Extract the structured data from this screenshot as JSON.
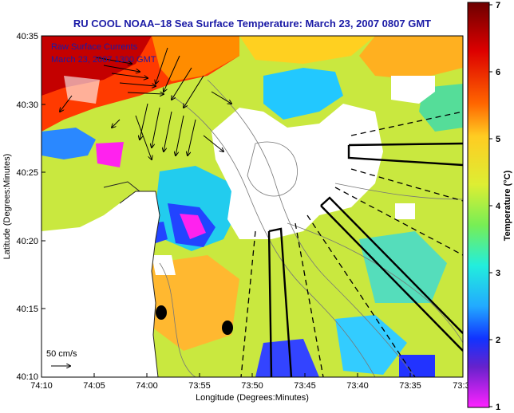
{
  "title": "RU COOL  NOAA–18  Sea Surface Temperature:  March 23, 2007 0807 GMT",
  "overlay": {
    "line1": "Raw Surface Currents",
    "line2": "March 23, 2007 1300 GMT"
  },
  "axes": {
    "xlabel": "Longitude (Degrees:Minutes)",
    "ylabel": "Latitude (Degrees:Minutes)",
    "xticks": [
      "74:10",
      "74:05",
      "74:00",
      "73:55",
      "73:50",
      "73:45",
      "73:40",
      "73:35",
      "73:3"
    ],
    "yticks": [
      "40:35",
      "40:30",
      "40:25",
      "40:20",
      "40:15",
      "40:10"
    ]
  },
  "scale_arrow": {
    "label": "50 cm/s"
  },
  "colorbar": {
    "label": "Temperature (°C)",
    "ticks": [
      "7",
      "6",
      "5",
      "4",
      "3",
      "2",
      "1"
    ],
    "colors": [
      "#7a0000",
      "#cc0000",
      "#ff3300",
      "#ff9900",
      "#ffd633",
      "#ddee33",
      "#aaee44",
      "#55dd88",
      "#33ddcc",
      "#22bbff",
      "#2266ff",
      "#2211cc",
      "#7722dd",
      "#ff22ff"
    ]
  }
}
